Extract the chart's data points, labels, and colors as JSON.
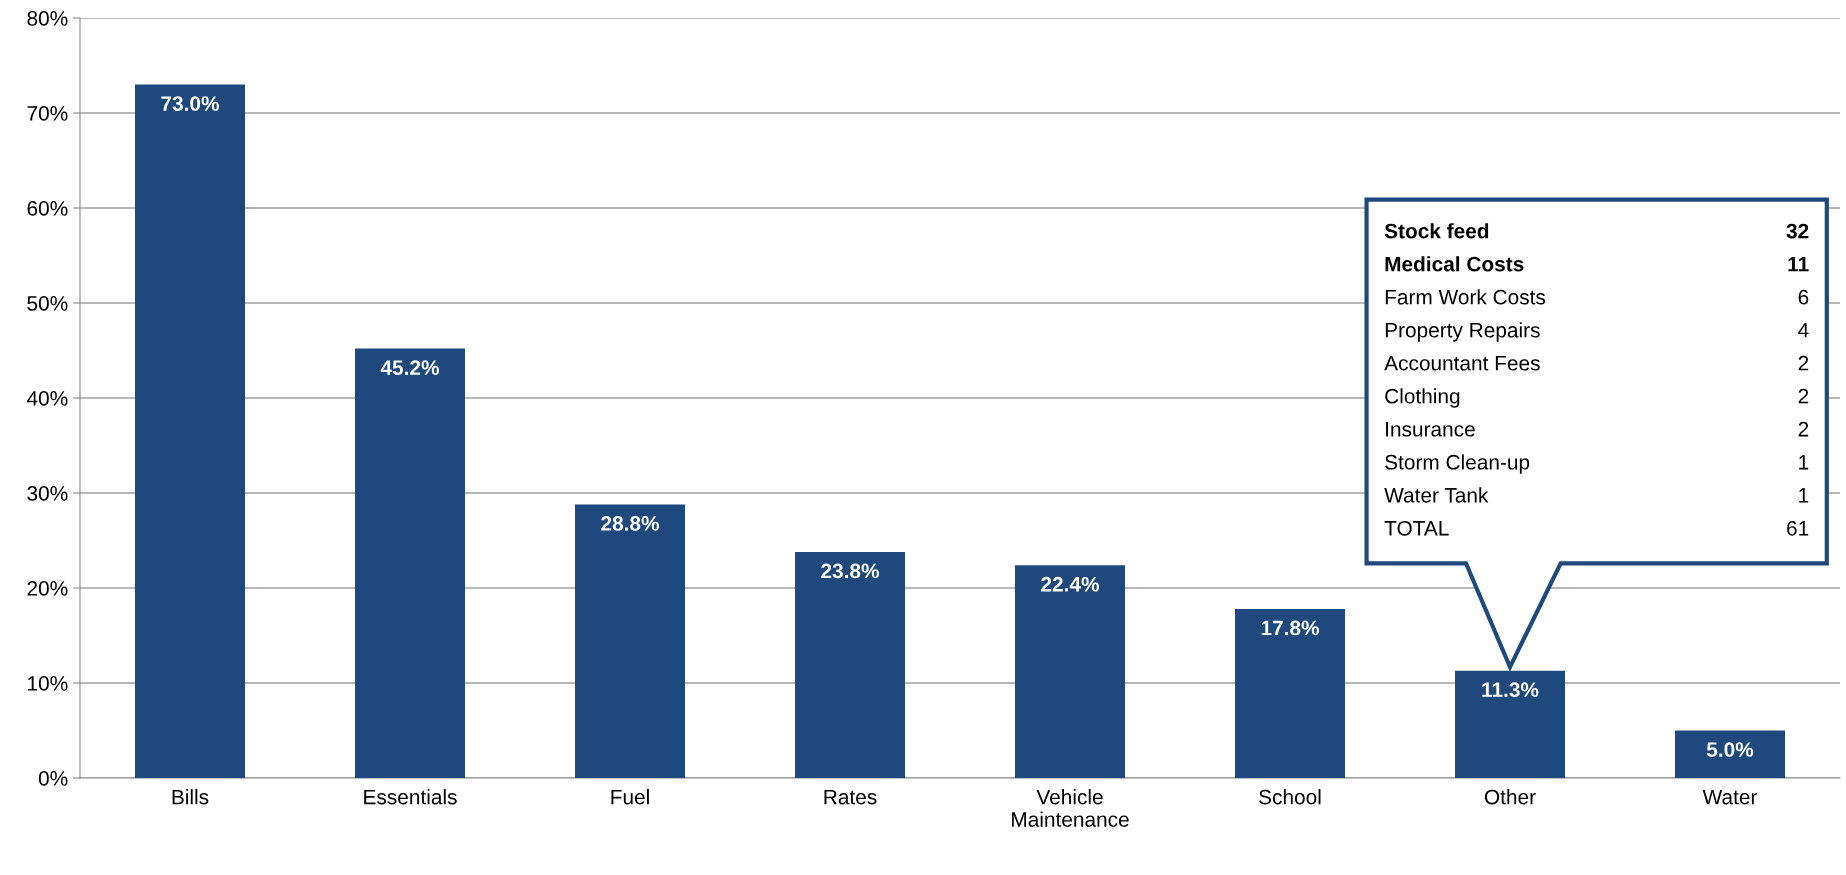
{
  "chart_data": {
    "type": "bar",
    "categories": [
      "Bills",
      "Essentials",
      "Fuel",
      "Rates",
      "Vehicle\nMaintenance",
      "School",
      "Other",
      "Water"
    ],
    "values": [
      73.0,
      45.2,
      28.8,
      23.8,
      22.4,
      17.8,
      11.3,
      5.0
    ],
    "value_labels": [
      "73.0%",
      "45.2%",
      "28.8%",
      "23.8%",
      "22.4%",
      "17.8%",
      "11.3%",
      "5.0%"
    ],
    "color": "#1f497d",
    "ylim": [
      0,
      80
    ],
    "yticks": [
      {
        "value": 0,
        "label": "0%"
      },
      {
        "value": 10,
        "label": "10%"
      },
      {
        "value": 20,
        "label": "20%"
      },
      {
        "value": 30,
        "label": "30%"
      },
      {
        "value": 40,
        "label": "40%"
      },
      {
        "value": 50,
        "label": "50%"
      },
      {
        "value": 60,
        "label": "60%"
      },
      {
        "value": 70,
        "label": "70%"
      },
      {
        "value": 80,
        "label": "80%"
      }
    ],
    "grid": "y",
    "legend": false,
    "annotations": [
      "Stock feed",
      "32",
      "Medical Costs",
      "11",
      "Farm Work Costs",
      "6",
      "Property Repairs",
      "4",
      "Accountant Fees",
      "2",
      "Clothing",
      "2",
      "Insurance",
      "2",
      "Storm Clean-up",
      "1",
      "Water Tank",
      "1",
      "TOTAL",
      "61"
    ]
  }
}
